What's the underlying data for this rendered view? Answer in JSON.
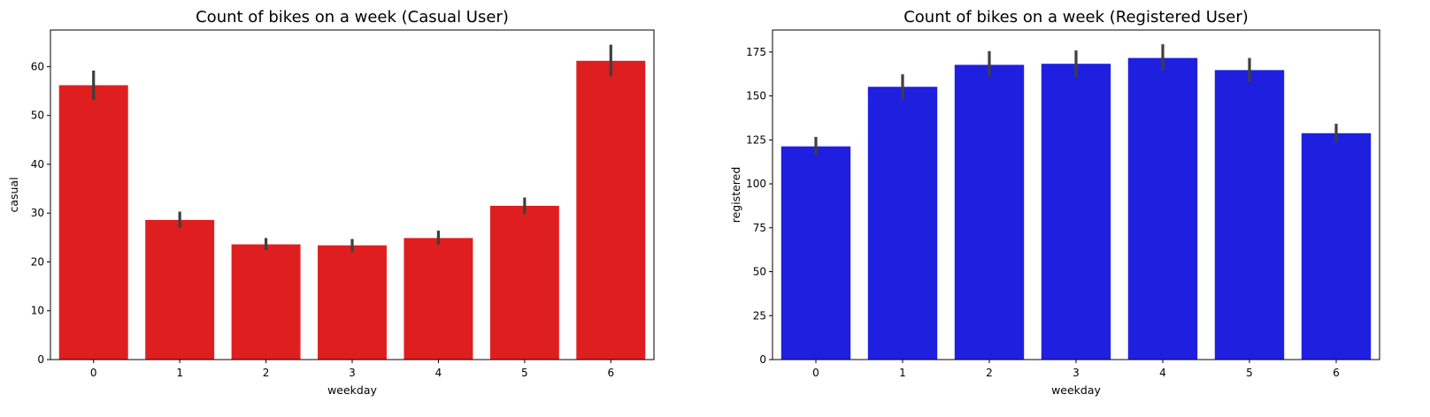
{
  "chart_data": [
    {
      "type": "bar",
      "title": "Count of bikes on a week (Casual User)",
      "xlabel": "weekday",
      "ylabel": "casual",
      "categories": [
        "0",
        "1",
        "2",
        "3",
        "4",
        "5",
        "6"
      ],
      "values": [
        56.2,
        28.6,
        23.6,
        23.4,
        24.9,
        31.5,
        61.2
      ],
      "error_low": [
        53.2,
        27.0,
        22.4,
        22.0,
        23.5,
        29.8,
        58.0
      ],
      "error_high": [
        59.2,
        30.3,
        24.9,
        24.7,
        26.4,
        33.2,
        64.5
      ],
      "ylim": [
        0,
        67.5
      ],
      "yticks": [
        0,
        10,
        20,
        30,
        40,
        50,
        60
      ],
      "color": "#df1f1f",
      "grid": false
    },
    {
      "type": "bar",
      "title": "Count of bikes on a week (Registered User)",
      "xlabel": "weekday",
      "ylabel": "registered",
      "categories": [
        "0",
        "1",
        "2",
        "3",
        "4",
        "5",
        "6"
      ],
      "values": [
        121.3,
        155.2,
        167.7,
        168.3,
        171.6,
        164.7,
        128.8
      ],
      "error_low": [
        116.4,
        148.4,
        161.0,
        160.8,
        164.6,
        158.0,
        124.0
      ],
      "error_high": [
        126.7,
        162.3,
        175.5,
        175.9,
        179.4,
        171.6,
        134.2
      ],
      "ylim": [
        0,
        187.5
      ],
      "yticks": [
        0,
        25,
        50,
        75,
        100,
        125,
        150,
        175
      ],
      "color": "#1f1fdf",
      "grid": false
    }
  ]
}
